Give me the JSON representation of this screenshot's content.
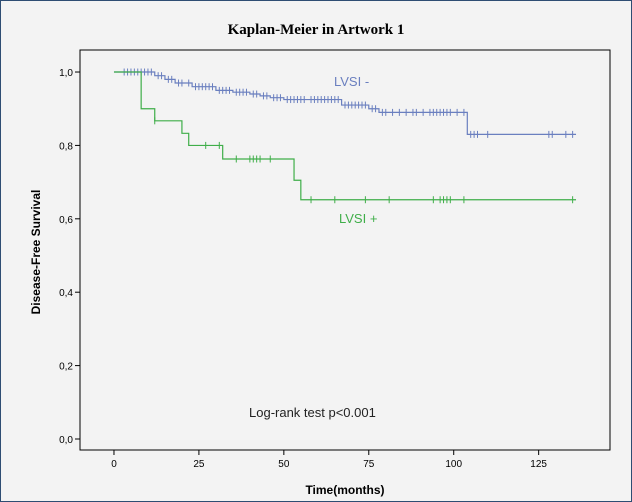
{
  "chart_data": {
    "type": "line",
    "title": "Kaplan-Meier in Artwork 1",
    "xlabel": "Time(months)",
    "ylabel": "Disease-Free Survival",
    "xlim": [
      -10,
      146
    ],
    "ylim": [
      -0.03,
      1.06
    ],
    "x_ticks": [
      0,
      25,
      50,
      75,
      100,
      125
    ],
    "x_tick_labels": [
      "0",
      "25",
      "50",
      "75",
      "100",
      "125"
    ],
    "y_ticks": [
      0.0,
      0.2,
      0.4,
      0.6,
      0.8,
      1.0
    ],
    "y_tick_labels": [
      "0,0",
      "0,2",
      "0,4",
      "0,6",
      "0,8",
      "1,0"
    ],
    "grid": false,
    "annotation": "Log-rank test p<0.001",
    "series": [
      {
        "name": "LVSI -",
        "color": "#6a7fbf",
        "steps": [
          [
            0,
            1.0
          ],
          [
            12,
            0.99
          ],
          [
            15,
            0.98
          ],
          [
            18,
            0.97
          ],
          [
            23,
            0.96
          ],
          [
            30,
            0.95
          ],
          [
            35,
            0.945
          ],
          [
            40,
            0.94
          ],
          [
            43,
            0.935
          ],
          [
            46,
            0.93
          ],
          [
            50,
            0.925
          ],
          [
            57,
            0.925
          ],
          [
            67,
            0.91
          ],
          [
            75,
            0.9
          ],
          [
            78,
            0.89
          ],
          [
            92,
            0.89
          ],
          [
            104,
            0.83
          ],
          [
            136,
            0.83
          ]
        ],
        "censored_x": [
          3,
          4,
          5,
          6,
          7,
          8,
          9,
          10,
          11,
          13,
          14,
          16,
          17,
          19,
          20,
          22,
          24,
          25,
          26,
          27,
          28,
          29,
          31,
          32,
          33,
          34,
          36,
          37,
          38,
          39,
          41,
          42,
          44,
          45,
          47,
          48,
          49,
          51,
          52,
          53,
          54,
          55,
          56,
          58,
          59,
          60,
          61,
          62,
          63,
          64,
          65,
          66,
          68,
          69,
          70,
          71,
          72,
          73,
          74,
          76,
          77,
          79,
          80,
          82,
          84,
          86,
          88,
          89,
          91,
          93,
          94,
          95,
          96,
          97,
          98,
          99,
          101,
          103,
          105,
          106,
          107,
          110,
          128,
          129,
          133,
          135
        ]
      },
      {
        "name": "LVSI +",
        "color": "#3fae49",
        "steps": [
          [
            0,
            1.0
          ],
          [
            8,
            0.9
          ],
          [
            12,
            0.867
          ],
          [
            20,
            0.833
          ],
          [
            22,
            0.8
          ],
          [
            32,
            0.763
          ],
          [
            46,
            0.763
          ],
          [
            53,
            0.705
          ],
          [
            55,
            0.652
          ],
          [
            136,
            0.652
          ]
        ],
        "censored_x": [
          12,
          27,
          31,
          36,
          40,
          41,
          42,
          43,
          46,
          58,
          65,
          74,
          81,
          94,
          96,
          97,
          98,
          99,
          103,
          135
        ]
      }
    ]
  }
}
